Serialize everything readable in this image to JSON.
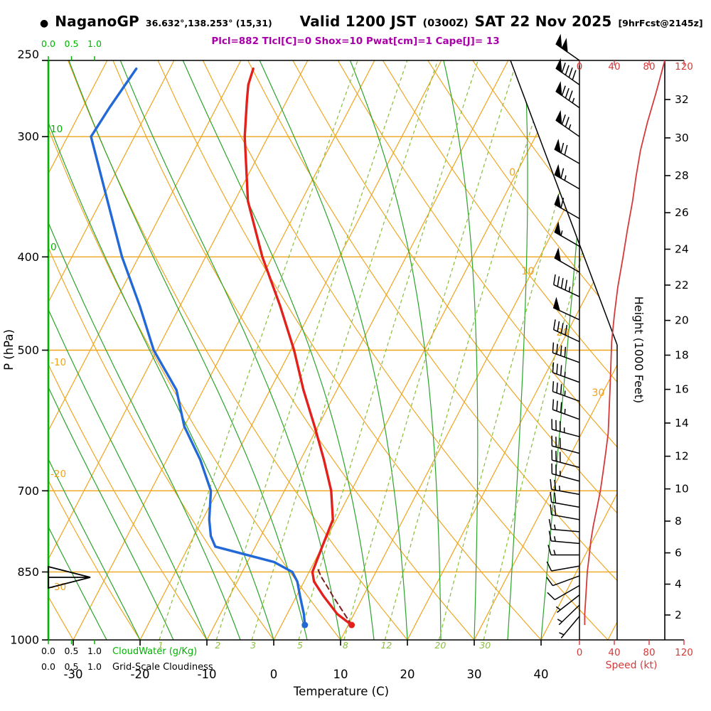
{
  "header": {
    "bullet": "●",
    "station": "NaganoGP",
    "coords": "36.632°,138.253° (15,31)",
    "valid1": "Valid 1200 JST",
    "valid_z": "(0300Z)",
    "valid2": "SAT 22 Nov 2025",
    "fcst": "[9hrFcst@2145z]",
    "indices": "Plcl=882 Tlcl[C]=0 Shox=10 Pwat[cm]=1 Cape[J]= 13"
  },
  "axes": {
    "pressure_label": "P (hPa)",
    "pressure_ticks": [
      250,
      300,
      400,
      500,
      700,
      850,
      1000
    ],
    "temperature_label": "Temperature (C)",
    "temperature_ticks": [
      -30,
      -20,
      -10,
      0,
      10,
      20,
      30,
      40
    ],
    "height_label": "Height (1000 Feet)",
    "height_ticks_kft": [
      2,
      4,
      6,
      8,
      10,
      12,
      14,
      16,
      18,
      20,
      22,
      24,
      26,
      28,
      30,
      32
    ],
    "speed_label": "Speed (kt)",
    "speed_ticks": [
      0,
      40,
      80,
      120
    ],
    "cloud_scale": [
      "0.0",
      "0.5",
      "1.0"
    ],
    "cloudwater_label": "CloudWater (g/Kg)",
    "cloudiness_label": "Grid-Scale Cloudiness"
  },
  "chart_data": {
    "type": "skewt_log_p_sounding",
    "pressure_range_hPa": [
      1000,
      250
    ],
    "temperature_axis_C": [
      -30,
      40
    ],
    "temperature_profile_C": [
      [
        965,
        10.5
      ],
      [
        940,
        7.5
      ],
      [
        900,
        4
      ],
      [
        870,
        1.5
      ],
      [
        850,
        0.5
      ],
      [
        800,
        0
      ],
      [
        750,
        -0.5
      ],
      [
        700,
        -3
      ],
      [
        650,
        -6.5
      ],
      [
        600,
        -10.5
      ],
      [
        550,
        -15
      ],
      [
        500,
        -19.5
      ],
      [
        450,
        -25
      ],
      [
        400,
        -31.5
      ],
      [
        350,
        -38
      ],
      [
        300,
        -43.5
      ],
      [
        275,
        -46
      ],
      [
        265,
        -47
      ],
      [
        255,
        -47.5
      ]
    ],
    "dewpoint_profile_C": [
      [
        965,
        3.5
      ],
      [
        940,
        2.5
      ],
      [
        900,
        0.5
      ],
      [
        870,
        -1
      ],
      [
        850,
        -2.5
      ],
      [
        830,
        -6
      ],
      [
        800,
        -16
      ],
      [
        780,
        -17.5
      ],
      [
        750,
        -19
      ],
      [
        700,
        -21
      ],
      [
        650,
        -25
      ],
      [
        600,
        -30
      ],
      [
        550,
        -34
      ],
      [
        500,
        -40.5
      ],
      [
        450,
        -46
      ],
      [
        400,
        -52.5
      ],
      [
        350,
        -59
      ],
      [
        300,
        -66.5
      ],
      [
        280,
        -66
      ],
      [
        255,
        -65
      ]
    ],
    "parcel_path_C": [
      [
        965,
        10.5
      ],
      [
        930,
        7.8
      ],
      [
        900,
        5.4
      ],
      [
        882,
        4.0
      ],
      [
        860,
        2.2
      ],
      [
        840,
        0.8
      ]
    ],
    "wind_speed_profile_kt": [
      [
        250,
        98
      ],
      [
        270,
        88
      ],
      [
        290,
        78
      ],
      [
        310,
        70
      ],
      [
        330,
        65
      ],
      [
        350,
        61
      ],
      [
        375,
        55
      ],
      [
        400,
        50
      ],
      [
        430,
        44
      ],
      [
        460,
        40
      ],
      [
        490,
        37
      ],
      [
        520,
        36
      ],
      [
        550,
        35
      ],
      [
        580,
        34
      ],
      [
        610,
        33
      ],
      [
        640,
        30
      ],
      [
        670,
        27
      ],
      [
        700,
        24
      ],
      [
        730,
        20
      ],
      [
        760,
        16
      ],
      [
        790,
        13
      ],
      [
        820,
        11
      ],
      [
        850,
        9
      ],
      [
        880,
        8
      ],
      [
        910,
        7
      ],
      [
        940,
        6
      ],
      [
        965,
        6
      ]
    ],
    "wind_barbs_p_kt_dir": [
      [
        250,
        100,
        305
      ],
      [
        265,
        90,
        305
      ],
      [
        280,
        85,
        305
      ],
      [
        300,
        75,
        305
      ],
      [
        320,
        70,
        300
      ],
      [
        340,
        65,
        300
      ],
      [
        365,
        60,
        300
      ],
      [
        390,
        55,
        300
      ],
      [
        415,
        50,
        300
      ],
      [
        440,
        45,
        295
      ],
      [
        465,
        50,
        295
      ],
      [
        490,
        40,
        295
      ],
      [
        515,
        40,
        290
      ],
      [
        540,
        35,
        290
      ],
      [
        565,
        35,
        290
      ],
      [
        590,
        35,
        290
      ],
      [
        615,
        35,
        285
      ],
      [
        640,
        30,
        285
      ],
      [
        662,
        30,
        285
      ],
      [
        684,
        25,
        285
      ],
      [
        706,
        25,
        280
      ],
      [
        728,
        20,
        280
      ],
      [
        750,
        20,
        280
      ],
      [
        772,
        15,
        275
      ],
      [
        794,
        15,
        275
      ],
      [
        816,
        15,
        270
      ],
      [
        838,
        10,
        260
      ],
      [
        858,
        10,
        250
      ],
      [
        878,
        10,
        240
      ],
      [
        898,
        5,
        232
      ],
      [
        920,
        5,
        226
      ],
      [
        945,
        5,
        220
      ]
    ],
    "isobar_lines_hPa": [
      300,
      400,
      500,
      700,
      850
    ],
    "isotherm_step_C": 10,
    "isotherm_labels_right_C": [
      0,
      10,
      20,
      30
    ],
    "adiabat_labels_left_C": [
      10,
      0,
      -10,
      -20,
      -30
    ],
    "mixing_ratio_lines_gkg": [
      1,
      2,
      3,
      5,
      8,
      12,
      20,
      30
    ],
    "dry_adiabat_theta_C": [
      -40,
      150,
      10
    ],
    "moist_adiabat_thetaw_C": [
      -25,
      40,
      5
    ],
    "surface_marker": {
      "pressure_hPa": 965,
      "temperature_C": 10.5,
      "dewpoint_C": 3.5
    }
  },
  "colors": {
    "grid_orange": "#EEA41C",
    "moist_green": "#2BA32B",
    "mixing_green": "#8CBF3F",
    "cloud_green": "#00B400",
    "temperature_red": "#E3211C",
    "dewpoint_blue": "#2268D6",
    "parcel_dark": "#7A2020",
    "speed_red": "#D43A3A",
    "indices_purple": "#A800A8",
    "axis_black": "#000000"
  }
}
